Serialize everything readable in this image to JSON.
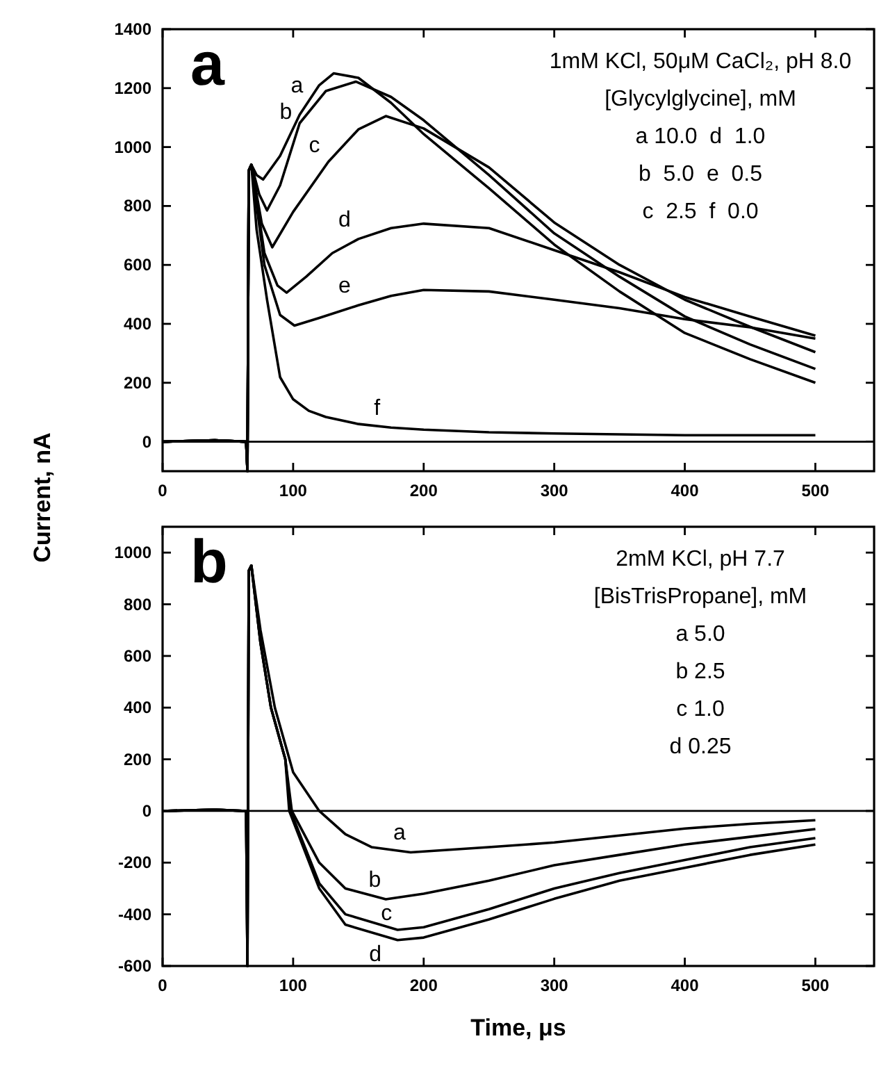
{
  "chart_data": [
    {
      "type": "line",
      "title": "a",
      "ylabel": "Current, nA",
      "xlim": [
        0,
        545
      ],
      "ylim": [
        -100,
        1400
      ],
      "xticks": [
        0,
        100,
        200,
        300,
        400,
        500
      ],
      "yticks": [
        0,
        200,
        400,
        600,
        800,
        1000,
        1200,
        1400
      ],
      "grid": false,
      "legend": false,
      "marker": "none",
      "line_style": "solid",
      "ref_lines": [
        {
          "axis": "y",
          "value": 0,
          "color": "#000000"
        }
      ],
      "annotations": [
        "1mM KCl, 50μM CaCl₂, pH 8.0",
        "[Glycylglycine], mM",
        "a 10.0  d  1.0",
        "b  5.0  e  0.5",
        "c  2.5  f  0.0"
      ],
      "series": [
        {
          "name": "a",
          "color": "#000000",
          "x": [
            0,
            40,
            64,
            65,
            66,
            68,
            72,
            77,
            90,
            105,
            120,
            131,
            150,
            175,
            200,
            250,
            300,
            350,
            400,
            450,
            500
          ],
          "values": [
            0,
            5,
            0,
            -100,
            920,
            940,
            905,
            890,
            970,
            1110,
            1210,
            1250,
            1235,
            1150,
            1044,
            860,
            669,
            510,
            369,
            280,
            200
          ]
        },
        {
          "name": "b",
          "color": "#000000",
          "x": [
            0,
            40,
            64,
            65,
            66,
            68,
            74,
            80,
            90,
            105,
            125,
            148,
            175,
            200,
            250,
            300,
            350,
            400,
            450,
            500
          ],
          "values": [
            0,
            5,
            0,
            -100,
            920,
            940,
            840,
            785,
            870,
            1081,
            1190,
            1222,
            1170,
            1091,
            905,
            707,
            560,
            425,
            330,
            247
          ]
        },
        {
          "name": "c",
          "color": "#000000",
          "x": [
            0,
            40,
            64,
            65,
            66,
            68,
            76,
            84,
            100,
            127,
            150,
            171,
            200,
            250,
            300,
            350,
            400,
            450,
            500
          ],
          "values": [
            0,
            5,
            0,
            -100,
            920,
            940,
            740,
            660,
            780,
            950,
            1060,
            1105,
            1063,
            931,
            744,
            600,
            482,
            390,
            304
          ]
        },
        {
          "name": "d",
          "color": "#000000",
          "x": [
            0,
            40,
            64,
            65,
            66,
            68,
            78,
            88,
            95,
            110,
            130,
            150,
            175,
            200,
            250,
            300,
            350,
            400,
            450,
            500
          ],
          "values": [
            0,
            5,
            0,
            -100,
            920,
            940,
            640,
            530,
            506,
            560,
            640,
            688,
            725,
            740,
            725,
            650,
            575,
            491,
            425,
            360
          ]
        },
        {
          "name": "e",
          "color": "#000000",
          "x": [
            0,
            40,
            64,
            65,
            66,
            68,
            78,
            90,
            101,
            120,
            150,
            175,
            200,
            250,
            300,
            350,
            400,
            450,
            500
          ],
          "values": [
            0,
            5,
            0,
            -100,
            920,
            940,
            600,
            430,
            394,
            420,
            463,
            495,
            515,
            510,
            482,
            453,
            416,
            388,
            350
          ]
        },
        {
          "name": "f",
          "color": "#000000",
          "x": [
            0,
            40,
            64,
            65,
            66,
            68,
            72,
            80,
            90,
            100,
            112,
            125,
            150,
            175,
            200,
            250,
            300,
            350,
            400,
            450,
            500
          ],
          "values": [
            0,
            5,
            0,
            -100,
            920,
            940,
            720,
            482,
            219,
            144,
            105,
            84,
            60,
            48,
            41,
            32,
            28,
            25,
            22,
            22,
            22
          ]
        }
      ]
    },
    {
      "type": "line",
      "title": "b",
      "xlabel": "Time, μs",
      "xlim": [
        0,
        545
      ],
      "ylim": [
        -600,
        1100
      ],
      "xticks": [
        0,
        100,
        200,
        300,
        400,
        500
      ],
      "yticks": [
        -600,
        -400,
        -200,
        0,
        200,
        400,
        600,
        800,
        1000
      ],
      "grid": false,
      "legend": false,
      "marker": "none",
      "line_style": "solid",
      "ref_lines": [
        {
          "axis": "y",
          "value": 0,
          "color": "#000000"
        }
      ],
      "annotations": [
        "2mM KCl, pH 7.7",
        "[BisTrisPropane], mM",
        "a 5.0",
        "b 2.5",
        "c 1.0",
        "d 0.25"
      ],
      "series": [
        {
          "name": "a",
          "color": "#000000",
          "x": [
            0,
            40,
            64,
            65,
            66,
            68,
            75,
            86,
            100,
            120,
            140,
            160,
            190,
            220,
            250,
            300,
            350,
            400,
            450,
            500
          ],
          "values": [
            0,
            5,
            0,
            -600,
            930,
            950,
            700,
            400,
            150,
            0,
            -90,
            -140,
            -160,
            -150,
            -140,
            -122,
            -95,
            -68,
            -50,
            -36
          ]
        },
        {
          "name": "b",
          "color": "#000000",
          "x": [
            0,
            40,
            64,
            65,
            66,
            68,
            75,
            83,
            94,
            99,
            120,
            140,
            171,
            200,
            250,
            300,
            350,
            400,
            450,
            500
          ],
          "values": [
            0,
            5,
            0,
            -600,
            930,
            950,
            650,
            400,
            200,
            0,
            -200,
            -300,
            -342,
            -320,
            -270,
            -210,
            -170,
            -130,
            -100,
            -70
          ]
        },
        {
          "name": "c",
          "color": "#000000",
          "x": [
            0,
            40,
            64,
            65,
            66,
            68,
            75,
            83,
            94,
            98,
            120,
            140,
            180,
            200,
            250,
            300,
            350,
            400,
            450,
            500
          ],
          "values": [
            0,
            5,
            0,
            -600,
            930,
            950,
            650,
            400,
            200,
            0,
            -280,
            -400,
            -460,
            -450,
            -380,
            -300,
            -240,
            -190,
            -140,
            -105
          ]
        },
        {
          "name": "d",
          "color": "#000000",
          "x": [
            0,
            40,
            64,
            65,
            66,
            68,
            75,
            83,
            94,
            97,
            120,
            140,
            180,
            200,
            250,
            300,
            350,
            400,
            450,
            500
          ],
          "values": [
            0,
            5,
            0,
            -600,
            930,
            950,
            650,
            400,
            200,
            0,
            -300,
            -440,
            -500,
            -490,
            -420,
            -340,
            -270,
            -220,
            -170,
            -130
          ]
        }
      ]
    }
  ]
}
